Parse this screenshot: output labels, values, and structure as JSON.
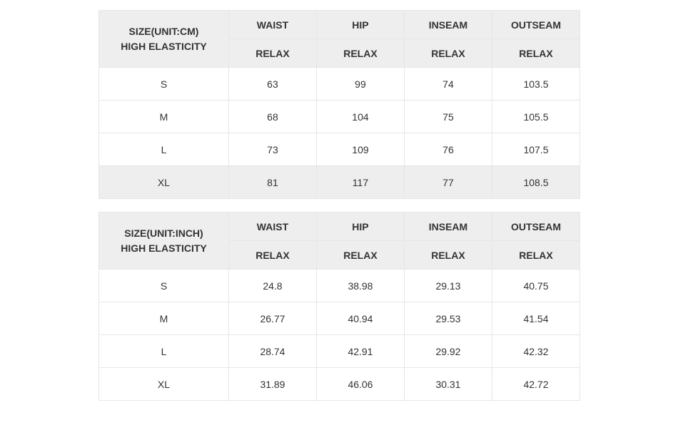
{
  "tables": [
    {
      "shaded_last_row": true,
      "size_header_line1": "SIZE(UNIT:CM)",
      "size_header_line2": "HIGH ELASTICITY",
      "measure_cols": [
        {
          "top": "WAIST",
          "sub": "RELAX"
        },
        {
          "top": "HIP",
          "sub": "RELAX"
        },
        {
          "top": "INSEAM",
          "sub": "RELAX"
        },
        {
          "top": "OUTSEAM",
          "sub": "RELAX"
        }
      ],
      "rows": [
        {
          "size": "S",
          "vals": [
            "63",
            "99",
            "74",
            "103.5"
          ]
        },
        {
          "size": "M",
          "vals": [
            "68",
            "104",
            "75",
            "105.5"
          ]
        },
        {
          "size": "L",
          "vals": [
            "73",
            "109",
            "76",
            "107.5"
          ]
        },
        {
          "size": "XL",
          "vals": [
            "81",
            "117",
            "77",
            "108.5"
          ]
        }
      ]
    },
    {
      "shaded_last_row": false,
      "size_header_line1": "SIZE(UNIT:INCH)",
      "size_header_line2": "HIGH ELASTICITY",
      "measure_cols": [
        {
          "top": "WAIST",
          "sub": "RELAX"
        },
        {
          "top": "HIP",
          "sub": "RELAX"
        },
        {
          "top": "INSEAM",
          "sub": "RELAX"
        },
        {
          "top": "OUTSEAM",
          "sub": "RELAX"
        }
      ],
      "rows": [
        {
          "size": "S",
          "vals": [
            "24.8",
            "38.98",
            "29.13",
            "40.75"
          ]
        },
        {
          "size": "M",
          "vals": [
            "26.77",
            "40.94",
            "29.53",
            "41.54"
          ]
        },
        {
          "size": "L",
          "vals": [
            "28.74",
            "42.91",
            "29.92",
            "42.32"
          ]
        },
        {
          "size": "XL",
          "vals": [
            "31.89",
            "46.06",
            "30.31",
            "42.72"
          ]
        }
      ]
    }
  ],
  "colors": {
    "header_bg": "#eeeeee",
    "row_bg": "#ffffff",
    "border": "#e6e6e6",
    "text": "#333333"
  }
}
